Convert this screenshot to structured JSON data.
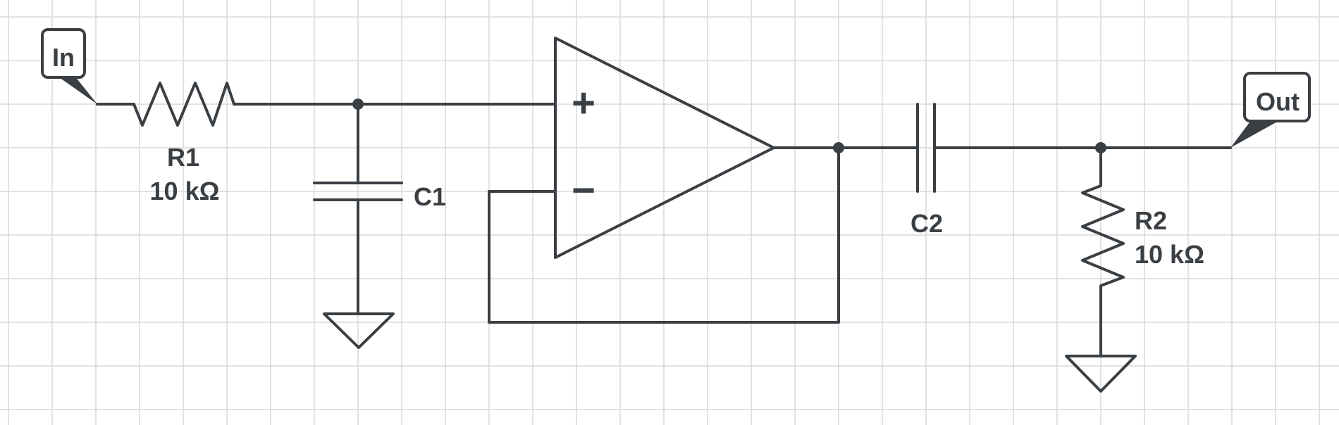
{
  "diagram": {
    "colors": {
      "background": "#ffffff",
      "grid": "#d9d9d9",
      "stroke": "#3a3f44"
    },
    "input_port": {
      "label": "In"
    },
    "output_port": {
      "label": "Out"
    },
    "components": {
      "r1": {
        "name": "R1",
        "value": "10 kΩ"
      },
      "c1": {
        "name": "C1"
      },
      "opamp": {
        "plus_symbol": "+",
        "minus_symbol": "−"
      },
      "c2": {
        "name": "C2"
      },
      "r2": {
        "name": "R2",
        "value": "10 kΩ"
      }
    }
  }
}
